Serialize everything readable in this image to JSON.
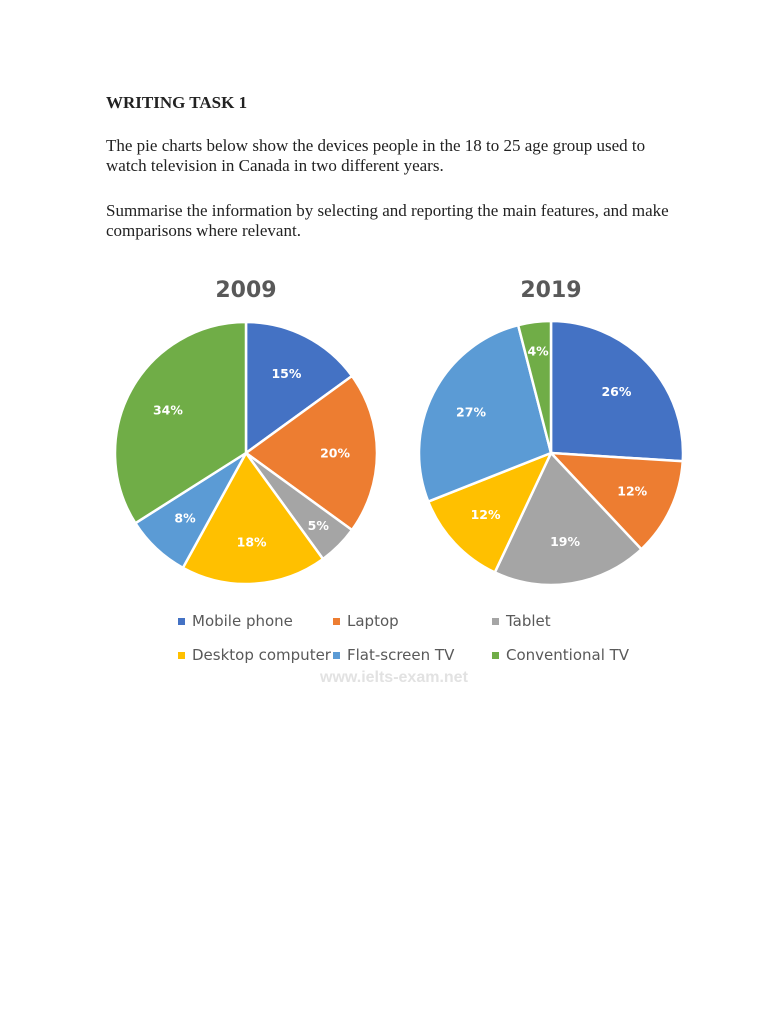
{
  "document": {
    "heading": "WRITING TASK 1",
    "paragraph1": "The pie charts below show the devices people in the 18 to 25 age group used to watch television in Canada in two different years.",
    "paragraph2": "Summarise the information by selecting and reporting the main features, and make comparisons where relevant.",
    "watermark": "www.ielts-exam.net"
  },
  "legend": [
    {
      "label": "Mobile phone",
      "color": "#4472C4"
    },
    {
      "label": "Laptop",
      "color": "#ED7D31"
    },
    {
      "label": "Tablet",
      "color": "#A5A5A5"
    },
    {
      "label": "Desktop computer",
      "color": "#FFC000"
    },
    {
      "label": "Flat-screen TV",
      "color": "#5B9BD5"
    },
    {
      "label": "Conventional TV",
      "color": "#70AD47"
    }
  ],
  "chart_data": [
    {
      "type": "pie",
      "title": "2009",
      "categories": [
        "Mobile phone",
        "Laptop",
        "Tablet",
        "Desktop computer",
        "Flat-screen TV",
        "Conventional TV"
      ],
      "values": [
        15,
        20,
        5,
        18,
        8,
        34
      ],
      "labels": [
        "15%",
        "20%",
        "5%",
        "18%",
        "8%",
        "34%"
      ],
      "colors": [
        "#4472C4",
        "#ED7D31",
        "#A5A5A5",
        "#FFC000",
        "#5B9BD5",
        "#70AD47"
      ],
      "legend_position": "bottom"
    },
    {
      "type": "pie",
      "title": "2019",
      "categories": [
        "Mobile phone",
        "Laptop",
        "Tablet",
        "Desktop computer",
        "Flat-screen TV",
        "Conventional TV"
      ],
      "values": [
        26,
        12,
        19,
        12,
        27,
        4
      ],
      "labels": [
        "26%",
        "12%",
        "19%",
        "12%",
        "27%",
        "4%"
      ],
      "colors": [
        "#4472C4",
        "#ED7D31",
        "#A5A5A5",
        "#FFC000",
        "#5B9BD5",
        "#70AD47"
      ],
      "legend_position": "bottom"
    }
  ]
}
